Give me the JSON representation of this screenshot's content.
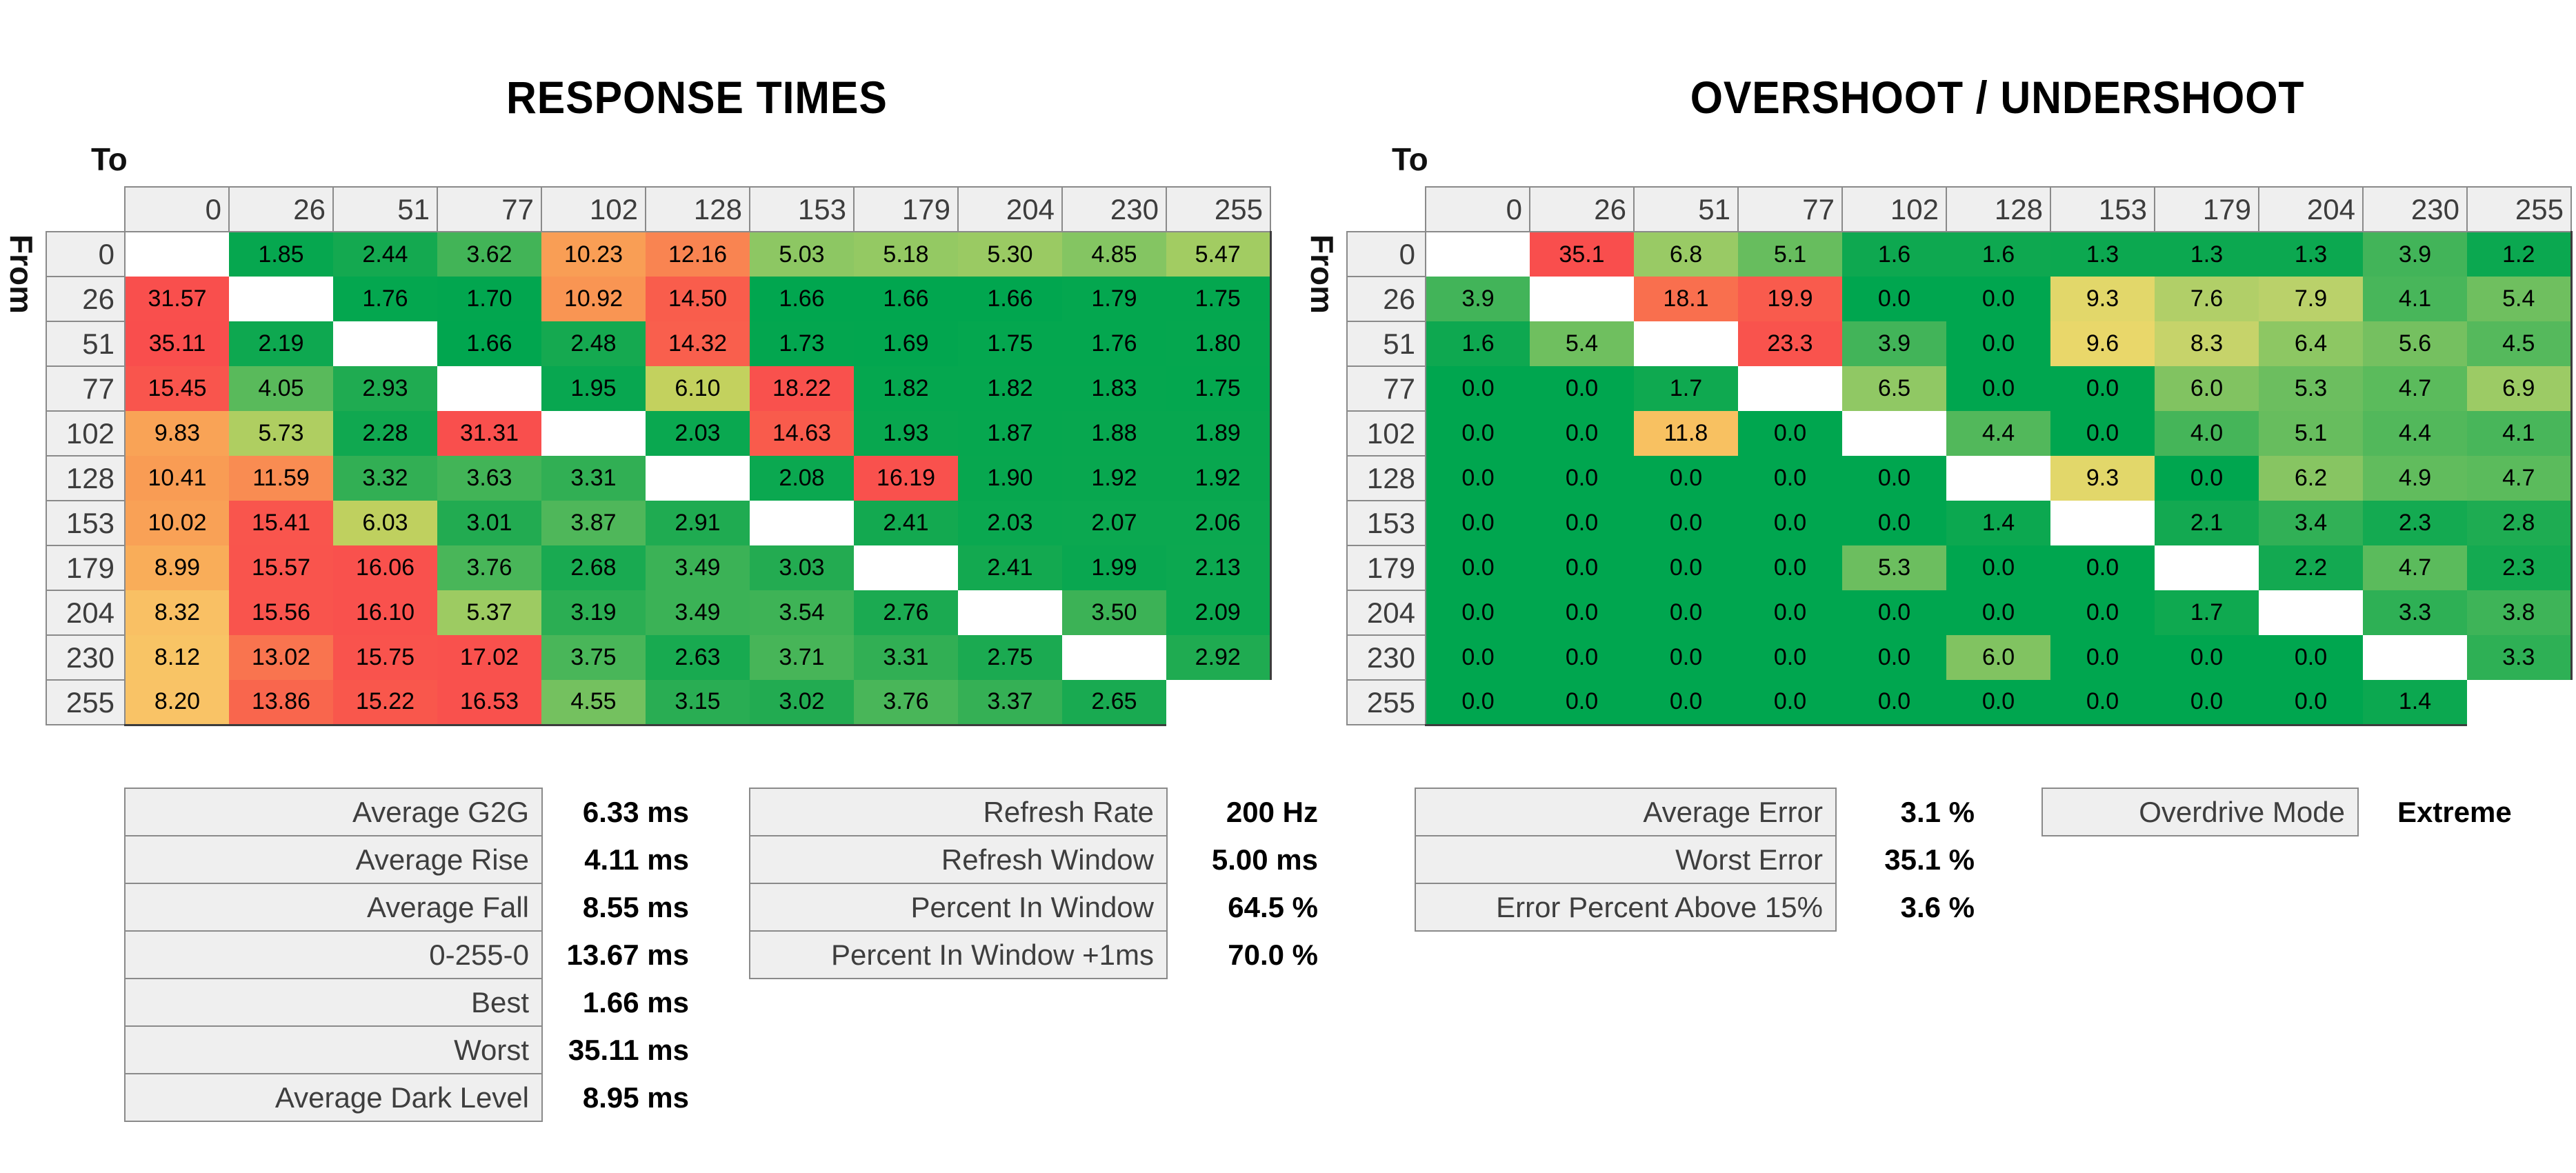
{
  "titles": {
    "left": "RESPONSE TIMES",
    "right": "OVERSHOOT / UNDERSHOOT"
  },
  "axis": {
    "to": "To",
    "from": "From"
  },
  "chart_data": [
    {
      "type": "heatmap",
      "title": "RESPONSE TIMES",
      "unit": "ms",
      "xlabel": "To",
      "ylabel": "From",
      "decimals": 2,
      "categories": [
        0,
        26,
        51,
        77,
        102,
        128,
        153,
        179,
        204,
        230,
        255
      ],
      "matrix": [
        [
          null,
          1.85,
          2.44,
          3.62,
          10.23,
          12.16,
          5.03,
          5.18,
          5.3,
          4.85,
          5.47
        ],
        [
          31.57,
          null,
          1.76,
          1.7,
          10.92,
          14.5,
          1.66,
          1.66,
          1.66,
          1.79,
          1.75
        ],
        [
          35.11,
          2.19,
          null,
          1.66,
          2.48,
          14.32,
          1.73,
          1.69,
          1.75,
          1.76,
          1.8
        ],
        [
          15.45,
          4.05,
          2.93,
          null,
          1.95,
          6.1,
          18.22,
          1.82,
          1.82,
          1.83,
          1.75
        ],
        [
          9.83,
          5.73,
          2.28,
          31.31,
          null,
          2.03,
          14.63,
          1.93,
          1.87,
          1.88,
          1.89
        ],
        [
          10.41,
          11.59,
          3.32,
          3.63,
          3.31,
          null,
          2.08,
          16.19,
          1.9,
          1.92,
          1.92
        ],
        [
          10.02,
          15.41,
          6.03,
          3.01,
          3.87,
          2.91,
          null,
          2.41,
          2.03,
          2.07,
          2.06
        ],
        [
          8.99,
          15.57,
          16.06,
          3.76,
          2.68,
          3.49,
          3.03,
          null,
          2.41,
          1.99,
          2.13
        ],
        [
          8.32,
          15.56,
          16.1,
          5.37,
          3.19,
          3.49,
          3.54,
          2.76,
          null,
          3.5,
          2.09
        ],
        [
          8.12,
          13.02,
          15.75,
          17.02,
          3.75,
          2.63,
          3.71,
          3.31,
          2.75,
          null,
          2.92
        ],
        [
          8.2,
          13.86,
          15.22,
          16.53,
          4.55,
          3.15,
          3.02,
          3.76,
          3.37,
          2.65,
          null
        ]
      ],
      "color_stops": [
        [
          1.6,
          "#00a64f"
        ],
        [
          3.0,
          "#21ab51"
        ],
        [
          4.0,
          "#56b95b"
        ],
        [
          5.0,
          "#8cc763"
        ],
        [
          5.6,
          "#a8cd62"
        ],
        [
          6.1,
          "#c3d15e"
        ],
        [
          7.2,
          "#edd05e"
        ],
        [
          8.2,
          "#f9c366"
        ],
        [
          9.0,
          "#f9ad59"
        ],
        [
          10.5,
          "#f99b54"
        ],
        [
          12.2,
          "#f98351"
        ],
        [
          13.5,
          "#f96c4e"
        ],
        [
          14.6,
          "#f95b4c"
        ],
        [
          16.0,
          "#f9514d"
        ],
        [
          36.0,
          "#f94e4d"
        ]
      ]
    },
    {
      "type": "heatmap",
      "title": "OVERSHOOT / UNDERSHOOT",
      "unit": "%",
      "xlabel": "To",
      "ylabel": "From",
      "decimals": 1,
      "categories": [
        0,
        26,
        51,
        77,
        102,
        128,
        153,
        179,
        204,
        230,
        255
      ],
      "matrix": [
        [
          null,
          35.1,
          6.8,
          5.1,
          1.6,
          1.6,
          1.3,
          1.3,
          1.3,
          3.9,
          1.2
        ],
        [
          3.9,
          null,
          18.1,
          19.9,
          0.0,
          0.0,
          9.3,
          7.6,
          7.9,
          4.1,
          5.4
        ],
        [
          1.6,
          5.4,
          null,
          23.3,
          3.9,
          0.0,
          9.6,
          8.3,
          6.4,
          5.6,
          4.5
        ],
        [
          0.0,
          0.0,
          1.7,
          null,
          6.5,
          0.0,
          0.0,
          6.0,
          5.3,
          4.7,
          6.9
        ],
        [
          0.0,
          0.0,
          11.8,
          0.0,
          null,
          4.4,
          0.0,
          4.0,
          5.1,
          4.4,
          4.1
        ],
        [
          0.0,
          0.0,
          0.0,
          0.0,
          0.0,
          null,
          9.3,
          0.0,
          6.2,
          4.9,
          4.7
        ],
        [
          0.0,
          0.0,
          0.0,
          0.0,
          0.0,
          1.4,
          null,
          2.1,
          3.4,
          2.3,
          2.8
        ],
        [
          0.0,
          0.0,
          0.0,
          0.0,
          5.3,
          0.0,
          0.0,
          null,
          2.2,
          4.7,
          2.3
        ],
        [
          0.0,
          0.0,
          0.0,
          0.0,
          0.0,
          0.0,
          0.0,
          1.7,
          null,
          3.3,
          3.8
        ],
        [
          0.0,
          0.0,
          0.0,
          0.0,
          0.0,
          6.0,
          0.0,
          0.0,
          0.0,
          null,
          3.3
        ],
        [
          0.0,
          0.0,
          0.0,
          0.0,
          0.0,
          0.0,
          0.0,
          0.0,
          0.0,
          1.4,
          null
        ]
      ],
      "color_stops": [
        [
          0.0,
          "#00a64f"
        ],
        [
          2.6,
          "#17aa51"
        ],
        [
          3.6,
          "#38b257"
        ],
        [
          4.6,
          "#58ba5c"
        ],
        [
          5.7,
          "#78c160"
        ],
        [
          6.8,
          "#99ca65"
        ],
        [
          8.0,
          "#bdd26a"
        ],
        [
          9.5,
          "#e8d86a"
        ],
        [
          11.0,
          "#f6cb67"
        ],
        [
          12.0,
          "#f9bf60"
        ],
        [
          14.0,
          "#f99d55"
        ],
        [
          16.5,
          "#f98150"
        ],
        [
          18.5,
          "#f96b4e"
        ],
        [
          20.5,
          "#f9544d"
        ],
        [
          36.0,
          "#f94e4d"
        ]
      ]
    }
  ],
  "stats": [
    {
      "name": "timing-summary",
      "rows": [
        {
          "label": "Average G2G",
          "value": "6.33",
          "unit": "ms"
        },
        {
          "label": "Average Rise",
          "value": "4.11",
          "unit": "ms"
        },
        {
          "label": "Average Fall",
          "value": "8.55",
          "unit": "ms"
        },
        {
          "label": "0-255-0",
          "value": "13.67",
          "unit": "ms"
        },
        {
          "label": "Best",
          "value": "1.66",
          "unit": "ms"
        },
        {
          "label": "Worst",
          "value": "35.11",
          "unit": "ms"
        },
        {
          "label": "Average Dark Level",
          "value": "8.95",
          "unit": "ms"
        }
      ]
    },
    {
      "name": "refresh-summary",
      "rows": [
        {
          "label": "Refresh Rate",
          "value": "200",
          "unit": "Hz"
        },
        {
          "label": "Refresh Window",
          "value": "5.00",
          "unit": "ms"
        },
        {
          "label": "Percent In Window",
          "value": "64.5",
          "unit": "%"
        },
        {
          "label": "Percent In Window +1ms",
          "value": "70.0",
          "unit": "%"
        }
      ]
    },
    {
      "name": "error-summary",
      "rows": [
        {
          "label": "Average Error",
          "value": "3.1",
          "unit": "%"
        },
        {
          "label": "Worst Error",
          "value": "35.1",
          "unit": "%"
        },
        {
          "label": "Error Percent Above 15%",
          "value": "3.6",
          "unit": "%"
        }
      ]
    },
    {
      "name": "overdrive-summary",
      "rows": [
        {
          "label": "Overdrive Mode",
          "value": "Extreme",
          "unit": ""
        }
      ]
    }
  ],
  "colors": {
    "best_green": "#00a64f",
    "worst_red": "#f94e4d",
    "header_bg": "#efefef",
    "header_border": "#8a8a8a",
    "table_edge": "#3c3c3c"
  }
}
